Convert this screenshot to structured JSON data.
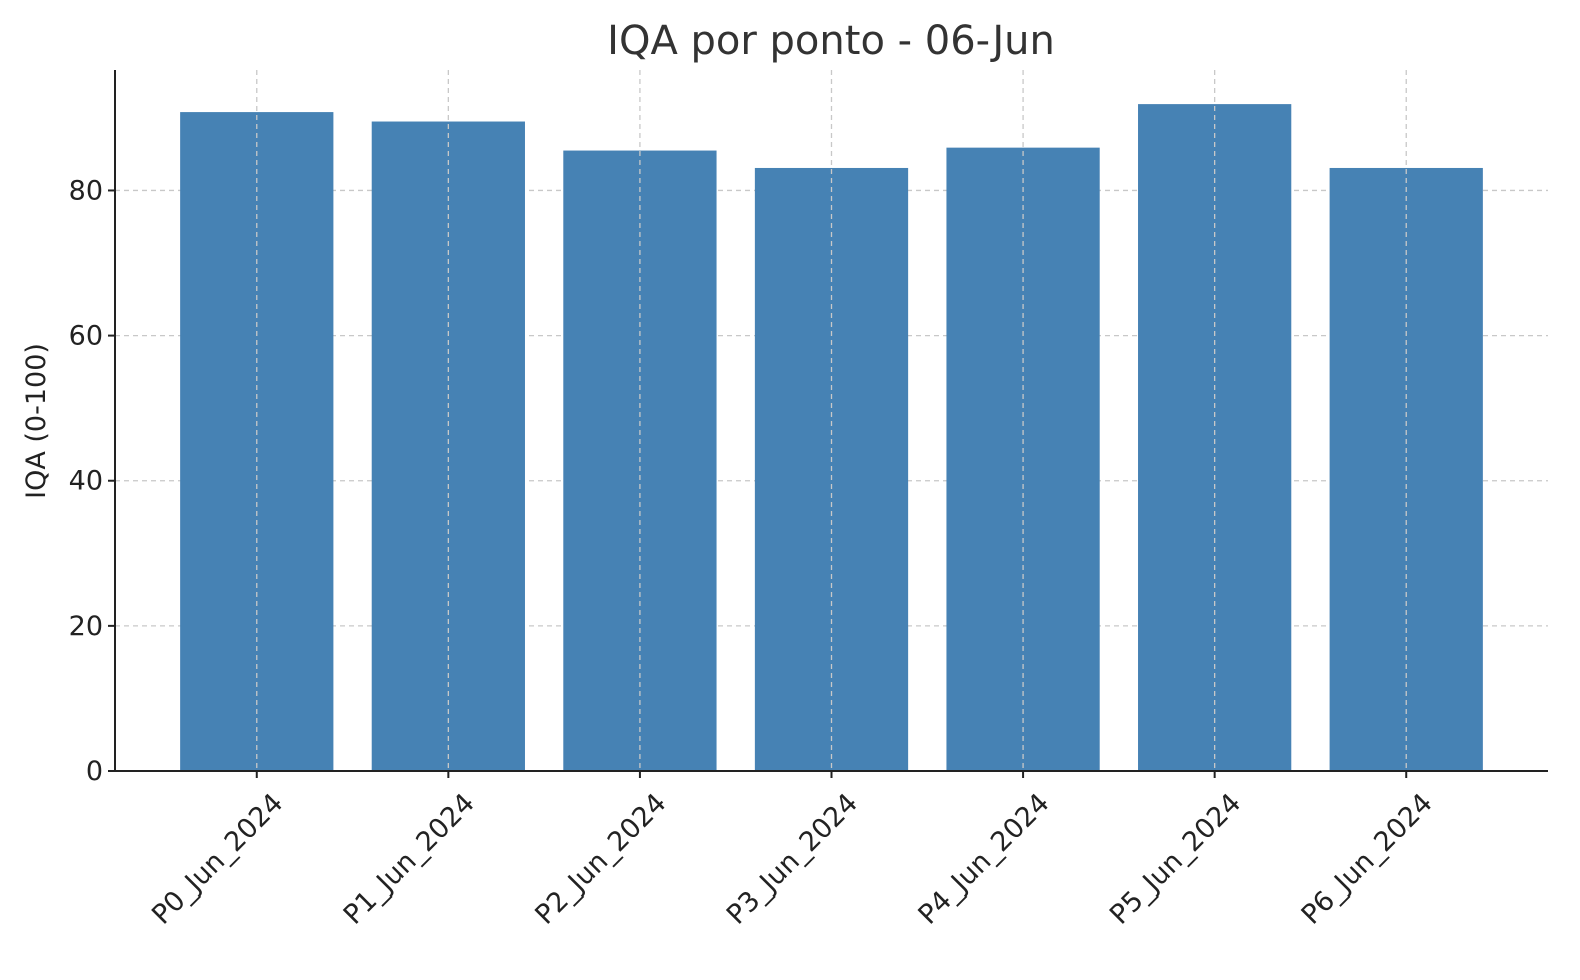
{
  "chart_data": {
    "type": "bar",
    "title": "IQA por ponto - 06-Jun",
    "xlabel": "",
    "ylabel": "IQA (0-100)",
    "categories": [
      "P0_Jun_2024",
      "P1_Jun_2024",
      "P2_Jun_2024",
      "P3_Jun_2024",
      "P4_Jun_2024",
      "P5_Jun_2024",
      "P6_Jun_2024"
    ],
    "values": [
      90.8,
      89.5,
      85.5,
      83.1,
      85.9,
      91.9,
      83.1
    ],
    "ylim": [
      0,
      96.6
    ],
    "yticks": [
      0,
      20,
      40,
      60,
      80
    ],
    "grid": true,
    "bar_color": "#4682b4"
  }
}
